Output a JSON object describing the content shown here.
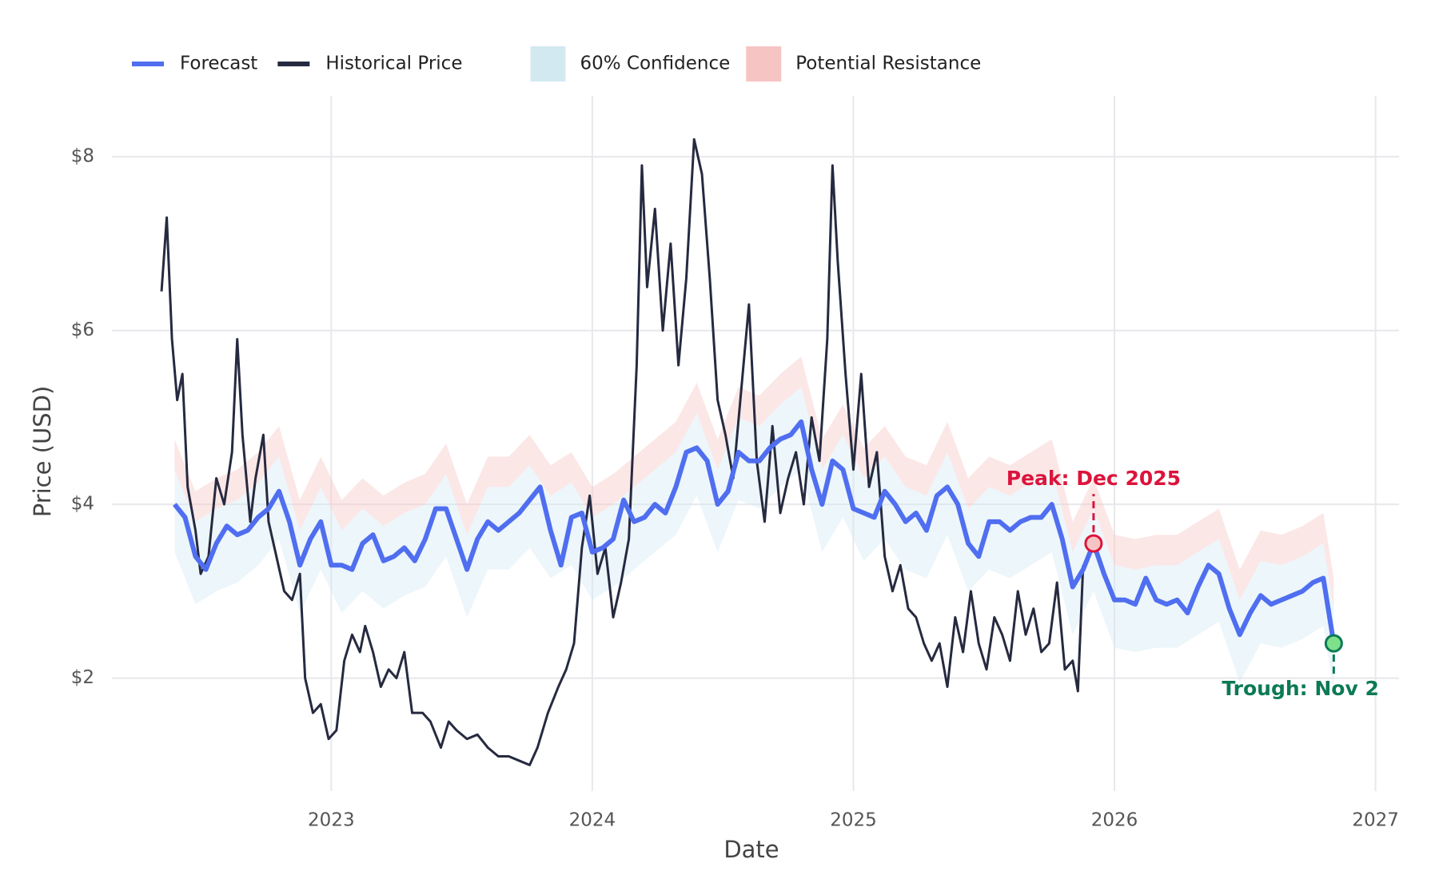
{
  "chart_data": {
    "type": "line",
    "x_label": "Date",
    "y_label": "Price (USD)",
    "xlim": [
      2022.16,
      2027.09
    ],
    "ylim": [
      0.7,
      8.7
    ],
    "xticks": [
      2023,
      2024,
      2025,
      2026,
      2027
    ],
    "yticks": [
      {
        "value": 2,
        "label": "$2"
      },
      {
        "value": 4,
        "label": "$4"
      },
      {
        "value": 6,
        "label": "$6"
      },
      {
        "value": 8,
        "label": "$8"
      }
    ],
    "grid": true,
    "legend": "top-left",
    "series": [
      {
        "name": "Forecast",
        "color": "#4f6ef0",
        "x": [
          2022.4,
          2022.44,
          2022.48,
          2022.52,
          2022.56,
          2022.6,
          2022.64,
          2022.68,
          2022.72,
          2022.76,
          2022.8,
          2022.84,
          2022.88,
          2022.92,
          2022.96,
          2023.0,
          2023.04,
          2023.08,
          2023.12,
          2023.16,
          2023.2,
          2023.24,
          2023.28,
          2023.32,
          2023.36,
          2023.4,
          2023.44,
          2023.48,
          2023.52,
          2023.56,
          2023.6,
          2023.64,
          2023.68,
          2023.72,
          2023.76,
          2023.8,
          2023.84,
          2023.88,
          2023.92,
          2023.96,
          2024.0,
          2024.04,
          2024.08,
          2024.12,
          2024.16,
          2024.2,
          2024.24,
          2024.28,
          2024.32,
          2024.36,
          2024.4,
          2024.44,
          2024.48,
          2024.52,
          2024.56,
          2024.6,
          2024.64,
          2024.68,
          2024.72,
          2024.76,
          2024.8,
          2024.84,
          2024.88,
          2024.92,
          2024.96,
          2025.0,
          2025.04,
          2025.08,
          2025.12,
          2025.16,
          2025.2,
          2025.24,
          2025.28,
          2025.32,
          2025.36,
          2025.4,
          2025.44,
          2025.48,
          2025.52,
          2025.56,
          2025.6,
          2025.64,
          2025.68,
          2025.72,
          2025.76,
          2025.8,
          2025.84,
          2025.88,
          2025.92,
          2025.96,
          2026.0,
          2026.04,
          2026.08,
          2026.12,
          2026.16,
          2026.2,
          2026.24,
          2026.28,
          2026.32,
          2026.36,
          2026.4,
          2026.44,
          2026.48,
          2026.52,
          2026.56,
          2026.6,
          2026.64,
          2026.68,
          2026.72,
          2026.76,
          2026.8,
          2026.84
        ],
        "values": [
          4.0,
          3.85,
          3.4,
          3.25,
          3.55,
          3.75,
          3.65,
          3.7,
          3.85,
          3.95,
          4.15,
          3.8,
          3.3,
          3.6,
          3.8,
          3.3,
          3.3,
          3.25,
          3.55,
          3.65,
          3.35,
          3.4,
          3.5,
          3.35,
          3.6,
          3.95,
          3.95,
          3.6,
          3.25,
          3.6,
          3.8,
          3.7,
          3.8,
          3.9,
          4.05,
          4.2,
          3.7,
          3.3,
          3.85,
          3.9,
          3.45,
          3.5,
          3.6,
          4.05,
          3.8,
          3.85,
          4.0,
          3.9,
          4.2,
          4.6,
          4.65,
          4.5,
          4.0,
          4.15,
          4.6,
          4.5,
          4.5,
          4.65,
          4.75,
          4.8,
          4.95,
          4.4,
          4.0,
          4.5,
          4.4,
          3.95,
          3.9,
          3.85,
          4.15,
          4.0,
          3.8,
          3.9,
          3.7,
          4.1,
          4.2,
          4.0,
          3.55,
          3.4,
          3.8,
          3.8,
          3.7,
          3.8,
          3.85,
          3.85,
          4.0,
          3.6,
          3.05,
          3.25,
          3.55,
          3.2,
          2.9,
          2.9,
          2.85,
          3.15,
          2.9,
          2.85,
          2.9,
          2.75,
          3.05,
          3.3,
          3.2,
          2.8,
          2.5,
          2.75,
          2.95,
          2.85,
          2.9,
          2.95,
          3.0,
          3.1,
          3.15,
          2.4
        ]
      },
      {
        "name": "Historical Price",
        "color": "#262a40",
        "x": [
          2022.35,
          2022.37,
          2022.39,
          2022.41,
          2022.43,
          2022.45,
          2022.48,
          2022.5,
          2022.53,
          2022.56,
          2022.59,
          2022.62,
          2022.64,
          2022.66,
          2022.69,
          2022.71,
          2022.74,
          2022.76,
          2022.79,
          2022.82,
          2022.85,
          2022.88,
          2022.9,
          2022.93,
          2022.96,
          2022.99,
          2023.02,
          2023.05,
          2023.08,
          2023.11,
          2023.13,
          2023.16,
          2023.19,
          2023.22,
          2023.25,
          2023.28,
          2023.31,
          2023.35,
          2023.38,
          2023.42,
          2023.45,
          2023.48,
          2023.52,
          2023.56,
          2023.6,
          2023.64,
          2023.68,
          2023.72,
          2023.76,
          2023.79,
          2023.83,
          2023.87,
          2023.9,
          2023.93,
          2023.96,
          2023.99,
          2024.02,
          2024.05,
          2024.08,
          2024.11,
          2024.14,
          2024.17,
          2024.19,
          2024.21,
          2024.24,
          2024.27,
          2024.3,
          2024.33,
          2024.36,
          2024.39,
          2024.42,
          2024.45,
          2024.48,
          2024.51,
          2024.54,
          2024.57,
          2024.6,
          2024.63,
          2024.66,
          2024.69,
          2024.72,
          2024.75,
          2024.78,
          2024.81,
          2024.84,
          2024.87,
          2024.9,
          2024.92,
          2024.94,
          2024.97,
          2025.0,
          2025.03,
          2025.06,
          2025.09,
          2025.12,
          2025.15,
          2025.18,
          2025.21,
          2025.24,
          2025.27,
          2025.3,
          2025.33,
          2025.36,
          2025.39,
          2025.42,
          2025.45,
          2025.48,
          2025.51,
          2025.54,
          2025.57,
          2025.6,
          2025.63,
          2025.66,
          2025.69,
          2025.72,
          2025.75,
          2025.78,
          2025.81,
          2025.84,
          2025.86,
          2025.88
        ],
        "values": [
          6.45,
          7.3,
          5.9,
          5.2,
          5.5,
          4.2,
          3.7,
          3.2,
          3.4,
          4.3,
          4.0,
          4.6,
          5.9,
          4.8,
          3.8,
          4.3,
          4.8,
          3.8,
          3.4,
          3.0,
          2.9,
          3.2,
          2.0,
          1.6,
          1.7,
          1.3,
          1.4,
          2.2,
          2.5,
          2.3,
          2.6,
          2.3,
          1.9,
          2.1,
          2.0,
          2.3,
          1.6,
          1.6,
          1.5,
          1.2,
          1.5,
          1.4,
          1.3,
          1.35,
          1.2,
          1.1,
          1.1,
          1.05,
          1.0,
          1.2,
          1.6,
          1.9,
          2.1,
          2.4,
          3.5,
          4.1,
          3.2,
          3.5,
          2.7,
          3.1,
          3.6,
          5.6,
          7.9,
          6.5,
          7.4,
          6.0,
          7.0,
          5.6,
          6.6,
          8.2,
          7.8,
          6.6,
          5.2,
          4.8,
          4.3,
          5.3,
          6.3,
          4.5,
          3.8,
          4.9,
          3.9,
          4.3,
          4.6,
          4.0,
          5.0,
          4.5,
          5.9,
          7.9,
          6.8,
          5.5,
          4.4,
          5.5,
          4.2,
          4.6,
          3.4,
          3.0,
          3.3,
          2.8,
          2.7,
          2.4,
          2.2,
          2.4,
          1.9,
          2.7,
          2.3,
          3.0,
          2.4,
          2.1,
          2.7,
          2.5,
          2.2,
          3.0,
          2.5,
          2.8,
          2.3,
          2.4,
          3.1,
          2.1,
          2.2,
          1.85,
          3.3
        ]
      }
    ],
    "band_x": [
      2022.4,
      2022.48,
      2022.56,
      2022.64,
      2022.72,
      2022.8,
      2022.88,
      2022.96,
      2023.04,
      2023.12,
      2023.2,
      2023.28,
      2023.36,
      2023.44,
      2023.52,
      2023.6,
      2023.68,
      2023.76,
      2023.84,
      2023.92,
      2024.0,
      2024.08,
      2024.16,
      2024.24,
      2024.32,
      2024.4,
      2024.48,
      2024.56,
      2024.64,
      2024.72,
      2024.8,
      2024.88,
      2024.96,
      2025.04,
      2025.12,
      2025.2,
      2025.28,
      2025.36,
      2025.44,
      2025.52,
      2025.6,
      2025.68,
      2025.76,
      2025.84,
      2025.92,
      2026.0,
      2026.08,
      2026.16,
      2026.24,
      2026.32,
      2026.4,
      2026.48,
      2026.56,
      2026.64,
      2026.72,
      2026.8,
      2026.84
    ],
    "bands": [
      {
        "name": "60% Confidence",
        "color": "#d3e9f2",
        "lower": [
          3.45,
          2.85,
          3.0,
          3.1,
          3.3,
          3.6,
          2.75,
          3.25,
          2.75,
          3.0,
          2.8,
          2.95,
          3.05,
          3.4,
          2.7,
          3.25,
          3.25,
          3.5,
          3.15,
          3.3,
          2.9,
          3.05,
          3.25,
          3.45,
          3.65,
          4.1,
          3.45,
          4.05,
          3.95,
          4.2,
          4.4,
          3.45,
          3.85,
          3.35,
          3.6,
          3.25,
          3.15,
          3.65,
          3.0,
          3.25,
          3.15,
          3.3,
          3.45,
          2.5,
          3.0,
          2.35,
          2.3,
          2.35,
          2.35,
          2.5,
          2.65,
          1.95,
          2.4,
          2.35,
          2.45,
          2.6,
          1.85
        ],
        "upper": [
          4.4,
          3.8,
          3.95,
          4.05,
          4.25,
          4.55,
          3.7,
          4.2,
          3.7,
          3.95,
          3.75,
          3.9,
          4.0,
          4.35,
          3.65,
          4.2,
          4.2,
          4.45,
          4.1,
          4.25,
          3.85,
          4.0,
          4.2,
          4.4,
          4.6,
          5.05,
          4.4,
          5.0,
          4.9,
          5.15,
          5.35,
          4.4,
          4.8,
          4.3,
          4.55,
          4.2,
          4.1,
          4.6,
          3.95,
          4.2,
          4.1,
          4.25,
          4.4,
          3.45,
          3.95,
          3.3,
          3.25,
          3.3,
          3.3,
          3.45,
          3.6,
          2.9,
          3.35,
          3.3,
          3.4,
          3.55,
          2.8
        ]
      },
      {
        "name": "Potential Resistance",
        "color": "#f7c4c4",
        "upper": [
          4.75,
          4.15,
          4.3,
          4.4,
          4.6,
          4.9,
          4.05,
          4.55,
          4.05,
          4.3,
          4.1,
          4.25,
          4.35,
          4.7,
          4.0,
          4.55,
          4.55,
          4.8,
          4.45,
          4.6,
          4.2,
          4.35,
          4.55,
          4.75,
          4.95,
          5.4,
          4.75,
          5.35,
          5.25,
          5.5,
          5.7,
          4.75,
          5.15,
          4.65,
          4.9,
          4.55,
          4.45,
          4.95,
          4.3,
          4.55,
          4.45,
          4.6,
          4.75,
          3.8,
          4.3,
          3.65,
          3.6,
          3.65,
          3.65,
          3.8,
          3.95,
          3.25,
          3.7,
          3.65,
          3.75,
          3.9,
          3.15
        ]
      }
    ],
    "annotations": [
      {
        "text": "Peak: Dec 2025",
        "x": 2025.92,
        "y": 3.55,
        "color": "#dc143c",
        "point_color": "#f7c4c4",
        "position": "above"
      },
      {
        "text": "Trough: Nov 2",
        "x": 2026.84,
        "y": 2.4,
        "color": "#0b7a55",
        "point_color": "#7ee08a",
        "position": "below"
      }
    ]
  }
}
